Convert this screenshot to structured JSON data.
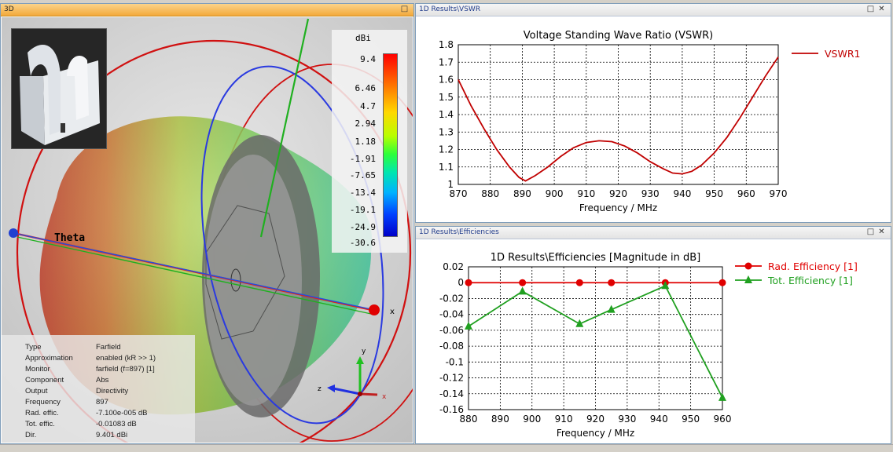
{
  "panel3d": {
    "title": "3D",
    "legend_unit": "dBi",
    "colorbar_ticks": [
      "9.4",
      "6.46",
      "4.7",
      "2.94",
      "1.18",
      "-1.91",
      "-7.65",
      "-13.4",
      "-19.1",
      "-24.9",
      "-30.6"
    ],
    "theta_label": "Theta",
    "axis_labels": {
      "x": "x",
      "y": "y",
      "z": "z"
    },
    "info": [
      {
        "key": "Type",
        "value": "Farfield"
      },
      {
        "key": "Approximation",
        "value": "enabled (kR >> 1)"
      },
      {
        "key": "Monitor",
        "value": "farfield (f=897) [1]"
      },
      {
        "key": "Component",
        "value": "Abs"
      },
      {
        "key": "Output",
        "value": "Directivity"
      },
      {
        "key": "Frequency",
        "value": "897"
      },
      {
        "key": "Rad. effic.",
        "value": "-7.100e-005 dB"
      },
      {
        "key": "Tot. effic.",
        "value": "-0.01083 dB"
      },
      {
        "key": "Dir.",
        "value": "9.401 dBi"
      }
    ]
  },
  "panel_vswr": {
    "title": "1D Results\\VSWR",
    "min_btn": "□",
    "close_btn": "✕"
  },
  "panel_eff": {
    "title": "1D Results\\Efficiencies",
    "min_btn": "□",
    "close_btn": "✕"
  },
  "chart_data": [
    {
      "type": "line",
      "title": "Voltage Standing Wave Ratio (VSWR)",
      "xlabel": "Frequency / MHz",
      "ylabel": "",
      "xlim": [
        870,
        970
      ],
      "ylim": [
        1,
        1.8
      ],
      "xticks": [
        "870",
        "880",
        "890",
        "900",
        "910",
        "920",
        "930",
        "940",
        "950",
        "960",
        "970"
      ],
      "yticks": [
        "1",
        "1.1",
        "1.2",
        "1.3",
        "1.4",
        "1.5",
        "1.6",
        "1.7",
        "1.8"
      ],
      "grid": true,
      "legend_placement": "right",
      "series": [
        {
          "name": "VSWR1",
          "color": "#c00000",
          "x": [
            870,
            874,
            878,
            882,
            886,
            889,
            891,
            894,
            898,
            902,
            906,
            910,
            914,
            918,
            922,
            926,
            930,
            934,
            937,
            940,
            943,
            946,
            950,
            954,
            958,
            962,
            966,
            970
          ],
          "y": [
            1.6,
            1.45,
            1.32,
            1.2,
            1.1,
            1.04,
            1.02,
            1.05,
            1.1,
            1.16,
            1.21,
            1.24,
            1.25,
            1.245,
            1.22,
            1.18,
            1.13,
            1.09,
            1.065,
            1.06,
            1.075,
            1.11,
            1.18,
            1.27,
            1.38,
            1.5,
            1.62,
            1.73
          ]
        }
      ]
    },
    {
      "type": "line",
      "title": "1D Results\\Efficiencies [Magnitude in dB]",
      "xlabel": "Frequency / MHz",
      "ylabel": "",
      "xlim": [
        880,
        960
      ],
      "ylim": [
        -0.16,
        0.02
      ],
      "xticks": [
        "880",
        "890",
        "900",
        "910",
        "920",
        "930",
        "940",
        "950",
        "960"
      ],
      "yticks": [
        "0.02",
        "0",
        "-0.02",
        "-0.04",
        "-0.06",
        "-0.08",
        "-0.1",
        "-0.12",
        "-0.14",
        "-0.16"
      ],
      "grid": true,
      "legend_placement": "right",
      "series": [
        {
          "name": "Rad. Efficiency [1]",
          "color": "#e00000",
          "marker": "circle",
          "x": [
            880,
            897,
            915,
            925,
            942,
            960
          ],
          "y": [
            0,
            0,
            0,
            0,
            0,
            0
          ]
        },
        {
          "name": "Tot. Efficiency [1]",
          "color": "#20a020",
          "marker": "triangle",
          "x": [
            880,
            897,
            915,
            925,
            942,
            960
          ],
          "y": [
            -0.055,
            -0.011,
            -0.052,
            -0.034,
            -0.004,
            -0.145
          ]
        }
      ]
    }
  ]
}
